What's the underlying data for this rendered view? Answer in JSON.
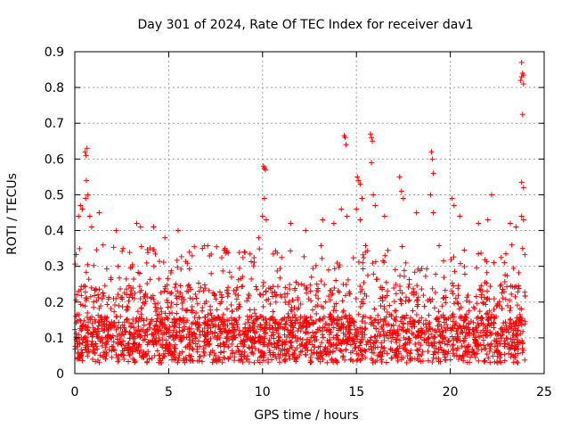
{
  "chart_data": {
    "type": "scatter",
    "title": "Day 301 of 2024, Rate Of TEC Index for receiver dav1",
    "xlabel": "GPS time / hours",
    "ylabel": "ROTI / TECUs",
    "xlim": [
      0,
      25
    ],
    "ylim": [
      0,
      0.9
    ],
    "xticks": [
      0,
      5,
      10,
      15,
      20,
      25
    ],
    "xtick_labels": [
      "0",
      "5",
      "10",
      "15",
      "20",
      "25"
    ],
    "yticks": [
      0,
      0.1,
      0.2,
      0.3,
      0.4,
      0.5,
      0.6,
      0.7,
      0.8,
      0.9
    ],
    "ytick_labels": [
      "0",
      "0.1",
      "0.2",
      "0.3",
      "0.4",
      "0.5",
      "0.6",
      "0.7",
      "0.8",
      "0.9"
    ],
    "grid": true,
    "marker": "+",
    "marker_color": "#ff0000",
    "dense_band": {
      "x_range": [
        0,
        24
      ],
      "y_typical_range": [
        0.02,
        0.28
      ],
      "description": "dense cloud of ROTI values across the full day"
    },
    "series": [
      {
        "name": "ROTI",
        "points": [
          [
            0.55,
            0.62
          ],
          [
            0.6,
            0.61
          ],
          [
            0.65,
            0.63
          ],
          [
            0.62,
            0.54
          ],
          [
            0.58,
            0.49
          ],
          [
            0.7,
            0.5
          ],
          [
            0.3,
            0.47
          ],
          [
            0.4,
            0.46
          ],
          [
            0.2,
            0.44
          ],
          [
            0.8,
            0.44
          ],
          [
            1.3,
            0.45
          ],
          [
            0.9,
            0.41
          ],
          [
            3.3,
            0.42
          ],
          [
            3.5,
            0.41
          ],
          [
            2.2,
            0.4
          ],
          [
            4.2,
            0.41
          ],
          [
            5.5,
            0.4
          ],
          [
            4.8,
            0.38
          ],
          [
            6.8,
            0.35
          ],
          [
            8.0,
            0.35
          ],
          [
            8.1,
            0.34
          ],
          [
            9.8,
            0.38
          ],
          [
            10.05,
            0.58
          ],
          [
            10.1,
            0.575
          ],
          [
            10.15,
            0.57
          ],
          [
            10.1,
            0.49
          ],
          [
            10.0,
            0.44
          ],
          [
            10.2,
            0.43
          ],
          [
            11.5,
            0.42
          ],
          [
            12.3,
            0.4
          ],
          [
            13.2,
            0.43
          ],
          [
            13.8,
            0.42
          ],
          [
            14.35,
            0.665
          ],
          [
            14.4,
            0.66
          ],
          [
            14.45,
            0.64
          ],
          [
            14.2,
            0.46
          ],
          [
            14.5,
            0.44
          ],
          [
            15.05,
            0.55
          ],
          [
            15.1,
            0.54
          ],
          [
            15.2,
            0.53
          ],
          [
            15.3,
            0.49
          ],
          [
            15.0,
            0.46
          ],
          [
            15.2,
            0.43
          ],
          [
            15.75,
            0.67
          ],
          [
            15.8,
            0.66
          ],
          [
            15.85,
            0.65
          ],
          [
            15.8,
            0.59
          ],
          [
            15.9,
            0.5
          ],
          [
            16.0,
            0.47
          ],
          [
            16.5,
            0.44
          ],
          [
            17.3,
            0.55
          ],
          [
            17.4,
            0.51
          ],
          [
            17.5,
            0.49
          ],
          [
            18.2,
            0.45
          ],
          [
            19.0,
            0.62
          ],
          [
            19.05,
            0.6
          ],
          [
            19.1,
            0.56
          ],
          [
            18.95,
            0.5
          ],
          [
            19.1,
            0.45
          ],
          [
            20.1,
            0.49
          ],
          [
            20.2,
            0.47
          ],
          [
            20.5,
            0.44
          ],
          [
            21.5,
            0.42
          ],
          [
            22.2,
            0.5
          ],
          [
            22.0,
            0.43
          ],
          [
            23.2,
            0.42
          ],
          [
            23.5,
            0.41
          ],
          [
            23.8,
            0.87
          ],
          [
            23.85,
            0.84
          ],
          [
            23.9,
            0.835
          ],
          [
            23.8,
            0.83
          ],
          [
            23.75,
            0.82
          ],
          [
            23.9,
            0.81
          ],
          [
            23.85,
            0.725
          ],
          [
            23.8,
            0.535
          ],
          [
            23.9,
            0.52
          ],
          [
            23.8,
            0.44
          ],
          [
            23.9,
            0.43
          ],
          [
            23.85,
            0.35
          ]
        ]
      }
    ]
  }
}
